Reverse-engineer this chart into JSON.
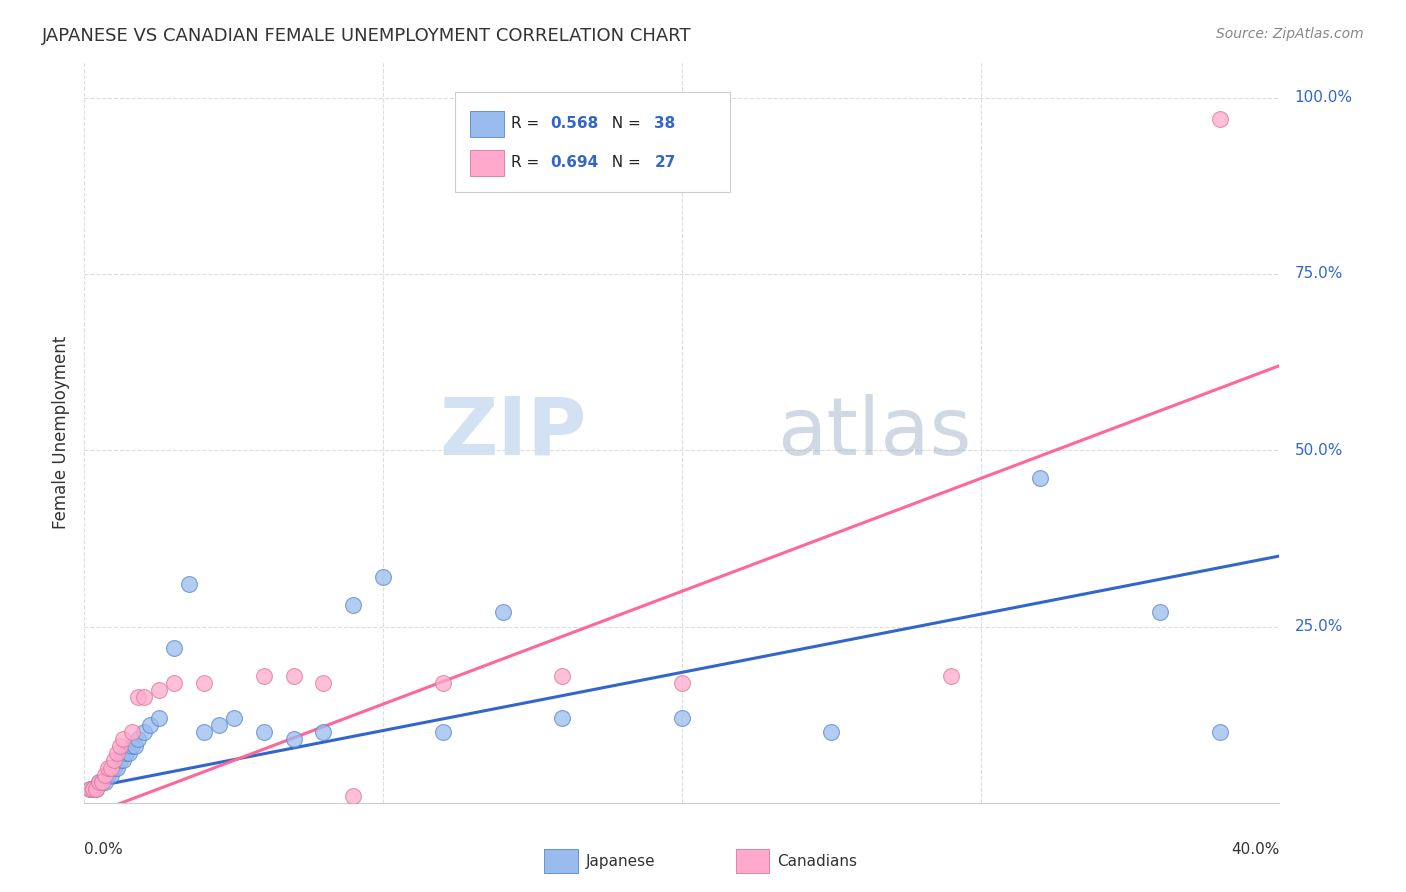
{
  "title": "JAPANESE VS CANADIAN FEMALE UNEMPLOYMENT CORRELATION CHART",
  "source": "Source: ZipAtlas.com",
  "ylabel": "Female Unemployment",
  "watermark_zip": "ZIP",
  "watermark_atlas": "atlas",
  "japanese_color": "#99BBEE",
  "canadian_color": "#FFAACC",
  "japanese_line_color": "#3366CC",
  "canadian_line_color": "#FF6699",
  "japanese_edge_color": "#5588CC",
  "canadian_edge_color": "#DD7799",
  "r1": "0.568",
  "n1": "38",
  "r2": "0.694",
  "n2": "27",
  "japanese_scatter_x": [
    0.002,
    0.003,
    0.004,
    0.005,
    0.006,
    0.007,
    0.008,
    0.009,
    0.01,
    0.011,
    0.012,
    0.013,
    0.014,
    0.015,
    0.016,
    0.017,
    0.018,
    0.02,
    0.022,
    0.025,
    0.03,
    0.035,
    0.04,
    0.045,
    0.05,
    0.06,
    0.07,
    0.08,
    0.09,
    0.1,
    0.12,
    0.14,
    0.16,
    0.2,
    0.25,
    0.32,
    0.36,
    0.38
  ],
  "japanese_scatter_y": [
    0.02,
    0.02,
    0.02,
    0.03,
    0.03,
    0.03,
    0.04,
    0.04,
    0.05,
    0.05,
    0.06,
    0.06,
    0.07,
    0.07,
    0.08,
    0.08,
    0.09,
    0.1,
    0.11,
    0.12,
    0.22,
    0.31,
    0.1,
    0.11,
    0.12,
    0.1,
    0.09,
    0.1,
    0.28,
    0.32,
    0.1,
    0.27,
    0.12,
    0.12,
    0.1,
    0.46,
    0.27,
    0.1
  ],
  "canadian_scatter_x": [
    0.002,
    0.003,
    0.004,
    0.005,
    0.006,
    0.007,
    0.008,
    0.009,
    0.01,
    0.011,
    0.012,
    0.013,
    0.016,
    0.018,
    0.02,
    0.025,
    0.03,
    0.04,
    0.06,
    0.07,
    0.08,
    0.09,
    0.12,
    0.16,
    0.2,
    0.29,
    0.38
  ],
  "canadian_scatter_y": [
    0.02,
    0.02,
    0.02,
    0.03,
    0.03,
    0.04,
    0.05,
    0.05,
    0.06,
    0.07,
    0.08,
    0.09,
    0.1,
    0.15,
    0.15,
    0.16,
    0.17,
    0.17,
    0.18,
    0.18,
    0.17,
    0.01,
    0.17,
    0.18,
    0.17,
    0.18,
    0.97
  ],
  "japanese_line_x": [
    0.0,
    0.4
  ],
  "japanese_line_y": [
    0.02,
    0.35
  ],
  "canadian_line_x": [
    0.0,
    0.4
  ],
  "canadian_line_y": [
    -0.02,
    0.62
  ],
  "xlim": [
    0.0,
    0.4
  ],
  "ylim": [
    0.0,
    1.05
  ],
  "right_yticks": [
    [
      1.0,
      "100.0%"
    ],
    [
      0.75,
      "75.0%"
    ],
    [
      0.5,
      "50.0%"
    ],
    [
      0.25,
      "25.0%"
    ]
  ],
  "hgrid_vals": [
    0.25,
    0.5,
    0.75,
    1.0
  ],
  "vgrid_vals": [
    0.0,
    0.1,
    0.2,
    0.3,
    0.4
  ],
  "grid_color": "#dddddd",
  "background_color": "#ffffff",
  "text_color": "#333333",
  "blue_label_color": "#3366CC",
  "source_color": "#888888"
}
